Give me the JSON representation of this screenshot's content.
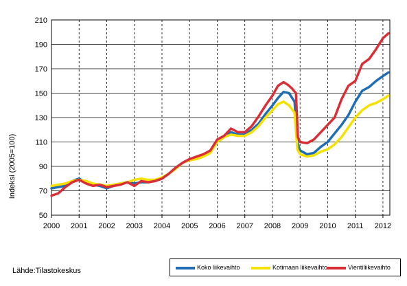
{
  "source": "Lähde:Tilastokeskus",
  "colors": {
    "koko": "#1f6db5",
    "kotimaa": "#f5e100",
    "vienti": "#d92e35"
  },
  "chart_data": {
    "type": "line",
    "ylabel": "Indeksi (2005=100)",
    "xlabel": "",
    "ylim": [
      50,
      210
    ],
    "yticks": [
      50,
      70,
      90,
      110,
      130,
      150,
      170,
      190,
      210
    ],
    "xlim": [
      2000,
      2012.25
    ],
    "xticks": [
      "2000",
      "2001",
      "2002",
      "2003",
      "2004",
      "2005",
      "2006",
      "2007",
      "2008",
      "2009",
      "2010",
      "2011",
      "2012"
    ],
    "grid": {
      "horizontal": "solid",
      "vertical": "dashed"
    },
    "legend_position": "bottom-right",
    "series": [
      {
        "name": "Koko liikevaihto",
        "color": "#1f6db5",
        "x": [
          2000,
          2000.5,
          2000.75,
          2001,
          2001.25,
          2001.5,
          2001.75,
          2002,
          2002.25,
          2002.5,
          2002.75,
          2003,
          2003.25,
          2003.5,
          2003.75,
          2004,
          2004.25,
          2004.5,
          2004.75,
          2005,
          2005.25,
          2005.5,
          2005.75,
          2006,
          2006.25,
          2006.5,
          2006.75,
          2007,
          2007.25,
          2007.5,
          2007.75,
          2008,
          2008.2,
          2008.4,
          2008.6,
          2008.8,
          2008.9,
          2009,
          2009.25,
          2009.5,
          2009.75,
          2010,
          2010.25,
          2010.5,
          2010.75,
          2011,
          2011.25,
          2011.5,
          2011.75,
          2012,
          2012.2
        ],
        "y": [
          72,
          74,
          78,
          80,
          77,
          75,
          74,
          72,
          74,
          76,
          77,
          76,
          77,
          77,
          78,
          80,
          84,
          89,
          93,
          96,
          97,
          99,
          102,
          110,
          114,
          118,
          116,
          116,
          120,
          125,
          133,
          140,
          146,
          151,
          150,
          143,
          110,
          103,
          100,
          101,
          106,
          110,
          117,
          124,
          132,
          143,
          152,
          155,
          160,
          164,
          167
        ]
      },
      {
        "name": "Kotimaan liikevaihto",
        "color": "#f5e100",
        "x": [
          2000,
          2000.5,
          2000.75,
          2001,
          2001.25,
          2001.5,
          2001.75,
          2002,
          2002.25,
          2002.5,
          2002.75,
          2003,
          2003.25,
          2003.5,
          2003.75,
          2004,
          2004.25,
          2004.5,
          2004.75,
          2005,
          2005.25,
          2005.5,
          2005.75,
          2006,
          2006.25,
          2006.5,
          2006.75,
          2007,
          2007.25,
          2007.5,
          2007.75,
          2008,
          2008.2,
          2008.4,
          2008.6,
          2008.8,
          2008.9,
          2009,
          2009.25,
          2009.5,
          2009.75,
          2010,
          2010.25,
          2010.5,
          2010.75,
          2011,
          2011.25,
          2011.5,
          2011.75,
          2012,
          2012.2
        ],
        "y": [
          74,
          76,
          78,
          79,
          78,
          76,
          75,
          74,
          75,
          76,
          77,
          79,
          80,
          79,
          79,
          81,
          84,
          88,
          93,
          95,
          96,
          98,
          101,
          110,
          114,
          116,
          115,
          115,
          118,
          123,
          130,
          136,
          141,
          143,
          140,
          134,
          104,
          100,
          98,
          99,
          102,
          104,
          108,
          114,
          122,
          130,
          136,
          140,
          142,
          145,
          148
        ]
      },
      {
        "name": "Vientiliikevaihto",
        "color": "#d92e35",
        "x": [
          2000,
          2000.25,
          2000.5,
          2000.75,
          2001,
          2001.25,
          2001.5,
          2001.75,
          2002,
          2002.25,
          2002.5,
          2002.75,
          2003,
          2003.25,
          2003.5,
          2003.75,
          2004,
          2004.25,
          2004.5,
          2004.75,
          2005,
          2005.25,
          2005.5,
          2005.75,
          2006,
          2006.25,
          2006.5,
          2006.75,
          2007,
          2007.25,
          2007.5,
          2007.75,
          2008,
          2008.2,
          2008.4,
          2008.55,
          2008.7,
          2008.85,
          2008.92,
          2009,
          2009.25,
          2009.5,
          2009.75,
          2010,
          2010.25,
          2010.5,
          2010.75,
          2011,
          2011.25,
          2011.5,
          2011.75,
          2012,
          2012.2
        ],
        "y": [
          66,
          68,
          73,
          77,
          79,
          76,
          74,
          75,
          73,
          74,
          75,
          77,
          74,
          78,
          77,
          78,
          80,
          84,
          89,
          93,
          96,
          98,
          100,
          103,
          112,
          115,
          121,
          118,
          118,
          123,
          131,
          140,
          148,
          156,
          159,
          157,
          154,
          150,
          114,
          110,
          109,
          112,
          118,
          124,
          130,
          145,
          156,
          160,
          174,
          178,
          186,
          195,
          199
        ]
      }
    ]
  }
}
